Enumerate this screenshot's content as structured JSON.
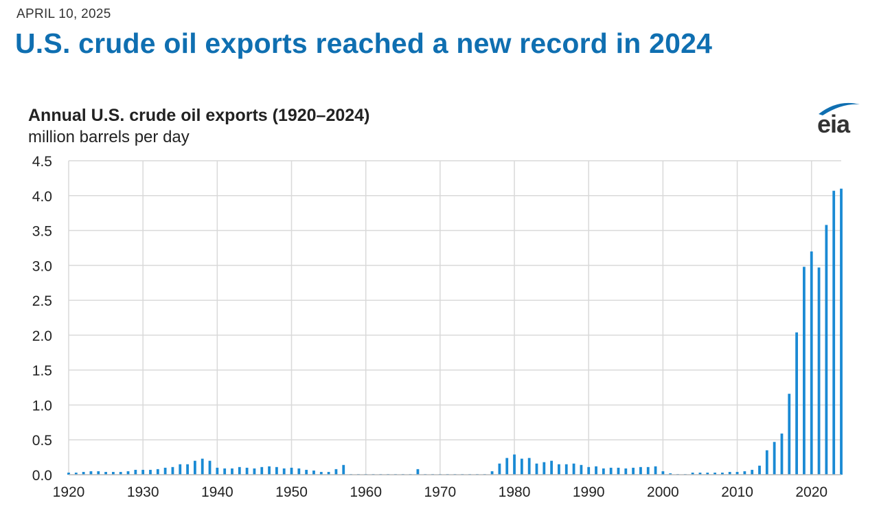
{
  "header": {
    "date": "APRIL 10, 2025",
    "headline": "U.S. crude oil exports reached a new record in 2024"
  },
  "logo": {
    "text": "eia",
    "color": "#0f6fb1"
  },
  "colors": {
    "bar": "#1a8ad4",
    "grid": "#d9d9d9",
    "headline": "#0f6fb1"
  },
  "chart_data": {
    "type": "bar",
    "title": "Annual U.S. crude oil exports (1920–2024)",
    "ylabel": "million barrels per day",
    "xlabel": "",
    "ylim": [
      0,
      4.5
    ],
    "yticks": [
      "0.0",
      "0.5",
      "1.0",
      "1.5",
      "2.0",
      "2.5",
      "3.0",
      "3.5",
      "4.0",
      "4.5"
    ],
    "xticks": [
      "1920",
      "1930",
      "1940",
      "1950",
      "1960",
      "1970",
      "1980",
      "1990",
      "2000",
      "2010",
      "2020"
    ],
    "grid": true,
    "categories": [
      1920,
      1921,
      1922,
      1923,
      1924,
      1925,
      1926,
      1927,
      1928,
      1929,
      1930,
      1931,
      1932,
      1933,
      1934,
      1935,
      1936,
      1937,
      1938,
      1939,
      1940,
      1941,
      1942,
      1943,
      1944,
      1945,
      1946,
      1947,
      1948,
      1949,
      1950,
      1951,
      1952,
      1953,
      1954,
      1955,
      1956,
      1957,
      1958,
      1959,
      1960,
      1961,
      1962,
      1963,
      1964,
      1965,
      1966,
      1967,
      1968,
      1969,
      1970,
      1971,
      1972,
      1973,
      1974,
      1975,
      1976,
      1977,
      1978,
      1979,
      1980,
      1981,
      1982,
      1983,
      1984,
      1985,
      1986,
      1987,
      1988,
      1989,
      1990,
      1991,
      1992,
      1993,
      1994,
      1995,
      1996,
      1997,
      1998,
      1999,
      2000,
      2001,
      2002,
      2003,
      2004,
      2005,
      2006,
      2007,
      2008,
      2009,
      2010,
      2011,
      2012,
      2013,
      2014,
      2015,
      2016,
      2017,
      2018,
      2019,
      2020,
      2021,
      2022,
      2023,
      2024
    ],
    "values": [
      0.03,
      0.03,
      0.04,
      0.05,
      0.05,
      0.04,
      0.04,
      0.04,
      0.05,
      0.07,
      0.07,
      0.07,
      0.08,
      0.1,
      0.11,
      0.15,
      0.15,
      0.2,
      0.23,
      0.2,
      0.1,
      0.09,
      0.09,
      0.11,
      0.1,
      0.09,
      0.11,
      0.12,
      0.11,
      0.09,
      0.1,
      0.09,
      0.07,
      0.06,
      0.04,
      0.04,
      0.08,
      0.14,
      0.01,
      0.01,
      0.01,
      0.01,
      0.01,
      0.01,
      0.01,
      0.01,
      0.01,
      0.08,
      0.01,
      0.01,
      0.01,
      0.01,
      0.01,
      0.01,
      0.01,
      0.01,
      0.01,
      0.05,
      0.16,
      0.24,
      0.29,
      0.23,
      0.24,
      0.16,
      0.18,
      0.2,
      0.15,
      0.15,
      0.16,
      0.14,
      0.11,
      0.12,
      0.09,
      0.1,
      0.1,
      0.09,
      0.1,
      0.11,
      0.11,
      0.12,
      0.05,
      0.02,
      0.01,
      0.01,
      0.03,
      0.03,
      0.03,
      0.03,
      0.03,
      0.04,
      0.04,
      0.05,
      0.07,
      0.13,
      0.35,
      0.47,
      0.59,
      1.16,
      2.04,
      2.98,
      3.2,
      2.97,
      3.58,
      4.07,
      4.1
    ]
  }
}
